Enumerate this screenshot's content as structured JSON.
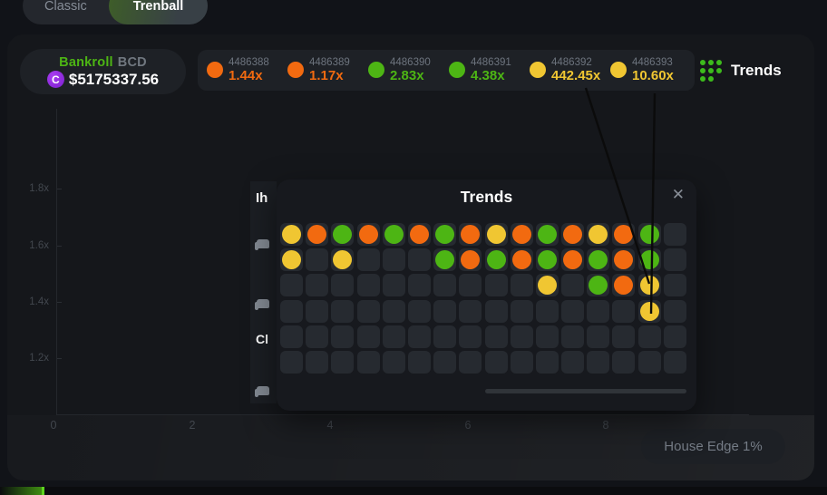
{
  "colors": {
    "orange": "#f26a10",
    "green": "#4db514",
    "yellow": "#f0c632",
    "accent_green": "#3dbb1c"
  },
  "tabs": [
    {
      "label": "Classic",
      "active": false
    },
    {
      "label": "Trenball",
      "active": true
    }
  ],
  "bankroll": {
    "label": "Bankroll",
    "currency": "BCD",
    "coin_letter": "C",
    "amount": "$5175337.56"
  },
  "results": [
    {
      "id": "4486388",
      "multiplier": "1.44x",
      "color": "orange"
    },
    {
      "id": "4486389",
      "multiplier": "1.17x",
      "color": "orange"
    },
    {
      "id": "4486390",
      "multiplier": "2.83x",
      "color": "green"
    },
    {
      "id": "4486391",
      "multiplier": "4.38x",
      "color": "green"
    },
    {
      "id": "4486392",
      "multiplier": "442.45x",
      "color": "yellow"
    },
    {
      "id": "4486393",
      "multiplier": "10.60x",
      "color": "yellow"
    }
  ],
  "trends_button": {
    "label": "Trends"
  },
  "chart": {
    "y_ticks": [
      "1.8x",
      "1.6x",
      "1.4x",
      "1.2x"
    ],
    "x_ticks": [
      "0",
      "2",
      "4",
      "6",
      "8"
    ]
  },
  "side_panel": {
    "heading_fragment": "Ih",
    "text_fragment": "Cl"
  },
  "modal": {
    "title": "Trends",
    "close": "✕",
    "grid": [
      [
        "yellow",
        "orange",
        "green",
        "orange",
        "green",
        "orange",
        "green",
        "orange",
        "yellow",
        "orange",
        "green",
        "orange",
        "yellow",
        "orange",
        "green",
        ""
      ],
      [
        "yellow",
        "",
        "yellow",
        "",
        "",
        "",
        "green",
        "orange",
        "green",
        "orange",
        "green",
        "orange",
        "green",
        "orange",
        "green",
        ""
      ],
      [
        "",
        "",
        "",
        "",
        "",
        "",
        "",
        "",
        "",
        "",
        "yellow",
        "",
        "green",
        "orange",
        "yellow",
        ""
      ],
      [
        "",
        "",
        "",
        "",
        "",
        "",
        "",
        "",
        "",
        "",
        "",
        "",
        "",
        "",
        "yellow",
        ""
      ],
      [
        "",
        "",
        "",
        "",
        "",
        "",
        "",
        "",
        "",
        "",
        "",
        "",
        "",
        "",
        "",
        ""
      ],
      [
        "",
        "",
        "",
        "",
        "",
        "",
        "",
        "",
        "",
        "",
        "",
        "",
        "",
        "",
        "",
        ""
      ]
    ]
  },
  "house_edge": {
    "label": "House Edge 1%"
  }
}
